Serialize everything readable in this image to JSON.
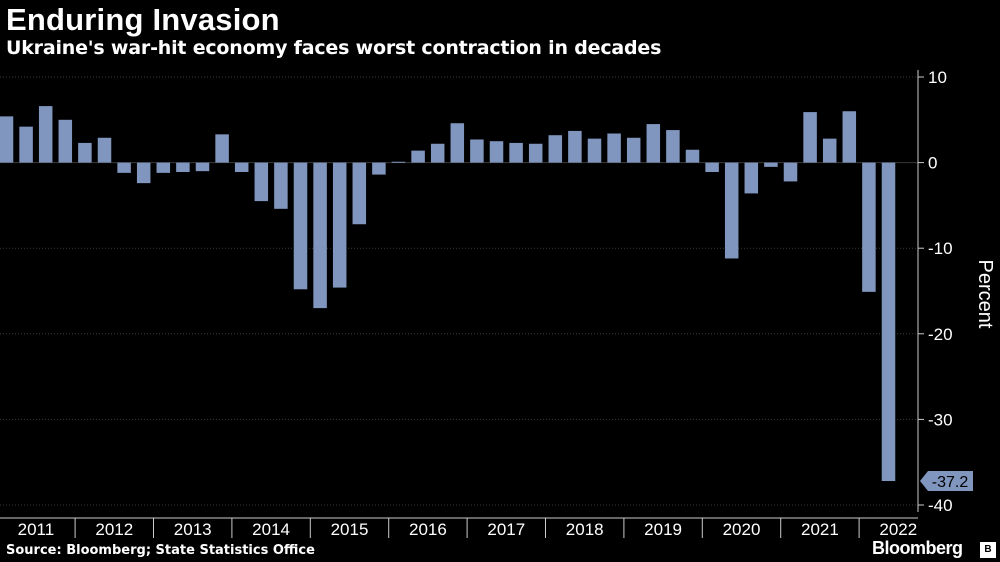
{
  "chart_data": {
    "type": "bar",
    "title": "Enduring Invasion",
    "subtitle": "Ukraine's war-hit economy faces worst contraction in decades",
    "ylabel": "Percent",
    "xlabel": "",
    "ylim": [
      -40,
      10
    ],
    "yticks": [
      10,
      0,
      -10,
      -20,
      -30,
      -40
    ],
    "grid": true,
    "bar_color": "#8096bf",
    "years": [
      "2011",
      "2012",
      "2013",
      "2014",
      "2015",
      "2016",
      "2017",
      "2018",
      "2019",
      "2020",
      "2021",
      "2022"
    ],
    "categories": [
      "2011-Q1",
      "2011-Q2",
      "2011-Q3",
      "2011-Q4",
      "2012-Q1",
      "2012-Q2",
      "2012-Q3",
      "2012-Q4",
      "2013-Q1",
      "2013-Q2",
      "2013-Q3",
      "2013-Q4",
      "2014-Q1",
      "2014-Q2",
      "2014-Q3",
      "2014-Q4",
      "2015-Q1",
      "2015-Q2",
      "2015-Q3",
      "2015-Q4",
      "2016-Q1",
      "2016-Q2",
      "2016-Q3",
      "2016-Q4",
      "2017-Q1",
      "2017-Q2",
      "2017-Q3",
      "2017-Q4",
      "2018-Q1",
      "2018-Q2",
      "2018-Q3",
      "2018-Q4",
      "2019-Q1",
      "2019-Q2",
      "2019-Q3",
      "2019-Q4",
      "2020-Q1",
      "2020-Q2",
      "2020-Q3",
      "2020-Q4",
      "2021-Q1",
      "2021-Q2",
      "2021-Q3",
      "2021-Q4",
      "2022-Q1",
      "2022-Q2"
    ],
    "values": [
      5.4,
      4.2,
      6.6,
      5.0,
      2.3,
      2.9,
      -1.2,
      -2.4,
      -1.2,
      -1.1,
      -1.0,
      3.3,
      -1.1,
      -4.5,
      -5.4,
      -14.8,
      -17.0,
      -14.6,
      -7.2,
      -1.4,
      0.1,
      1.4,
      2.2,
      4.6,
      2.7,
      2.5,
      2.3,
      2.2,
      3.2,
      3.7,
      2.8,
      3.4,
      2.9,
      4.5,
      3.8,
      1.5,
      -1.1,
      -11.2,
      -3.6,
      -0.5,
      -2.2,
      5.9,
      2.8,
      6.0,
      -15.1,
      -37.2
    ],
    "annotation": {
      "label": "-37.2",
      "value": -37.2
    }
  },
  "source": "Source: Bloomberg; State Statistics Office",
  "brand": {
    "name": "Bloomberg",
    "badge": "B"
  }
}
